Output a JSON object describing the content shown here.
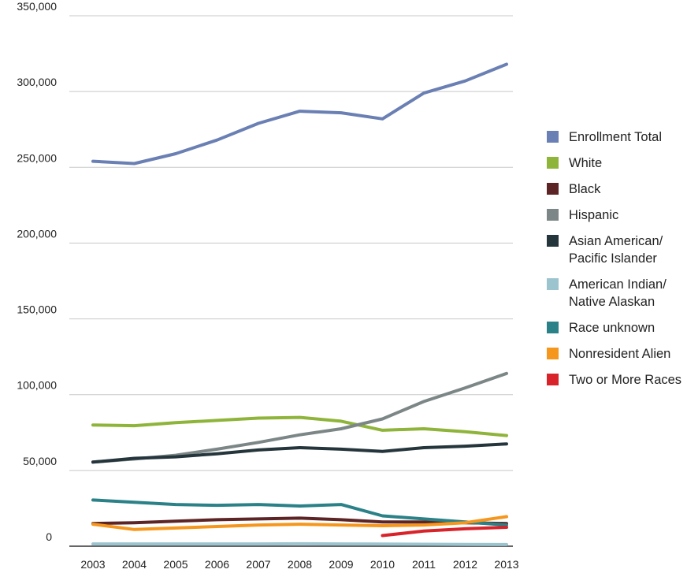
{
  "chart_data": {
    "type": "line",
    "title": "",
    "xlabel": "",
    "ylabel": "",
    "x": [
      "2003",
      "2004",
      "2005",
      "2006",
      "2007",
      "2008",
      "2009",
      "2010",
      "2011",
      "2012",
      "2013"
    ],
    "ylim": [
      0,
      350000
    ],
    "yticks": [
      "0",
      "50,000",
      "100,000",
      "150,000",
      "200,000",
      "250,000",
      "300,000",
      "350,000"
    ],
    "ytick_values": [
      0,
      50000,
      100000,
      150000,
      200000,
      250000,
      300000,
      350000
    ],
    "grid": true,
    "legend_position": "right",
    "series": [
      {
        "name": "Enrollment Total",
        "color": "#6a7fb3",
        "values": [
          254000,
          252500,
          259000,
          268000,
          279000,
          287000,
          286000,
          282000,
          299000,
          307000,
          318000
        ]
      },
      {
        "name": "White",
        "color": "#8fb43a",
        "values": [
          80000,
          79500,
          81500,
          83000,
          84500,
          85000,
          82500,
          76500,
          77500,
          75500,
          73000
        ]
      },
      {
        "name": "Black",
        "color": "#5c2424",
        "values": [
          15000,
          15500,
          16500,
          17500,
          18000,
          18500,
          17500,
          16000,
          16000,
          15500,
          15000
        ]
      },
      {
        "name": "Hispanic",
        "color": "#7d8686",
        "values": [
          55500,
          57500,
          60000,
          64000,
          68500,
          73500,
          77500,
          84000,
          95500,
          104500,
          114000
        ]
      },
      {
        "name": "Asian American/ Pacific Islander",
        "color": "#25353c",
        "values": [
          55500,
          58000,
          59000,
          61000,
          63500,
          65000,
          64000,
          62500,
          65000,
          66000,
          67500
        ]
      },
      {
        "name": "American Indian/ Native Alaskan",
        "color": "#9cc4cf",
        "values": [
          1500,
          1500,
          1500,
          1500,
          1500,
          1600,
          1500,
          1400,
          1300,
          1200,
          1100
        ]
      },
      {
        "name": "Race unknown",
        "color": "#2a8187",
        "values": [
          30500,
          29000,
          27500,
          27000,
          27500,
          26500,
          27500,
          20000,
          18000,
          16000,
          14000
        ]
      },
      {
        "name": "Nonresident Alien",
        "color": "#f5961d",
        "values": [
          14500,
          11000,
          12000,
          13000,
          14000,
          14500,
          14000,
          13500,
          14000,
          15500,
          19500
        ]
      },
      {
        "name": "Two or More Races",
        "color": "#d8232a",
        "values": [
          null,
          null,
          null,
          null,
          null,
          null,
          null,
          7000,
          10000,
          11500,
          12500
        ]
      }
    ]
  }
}
